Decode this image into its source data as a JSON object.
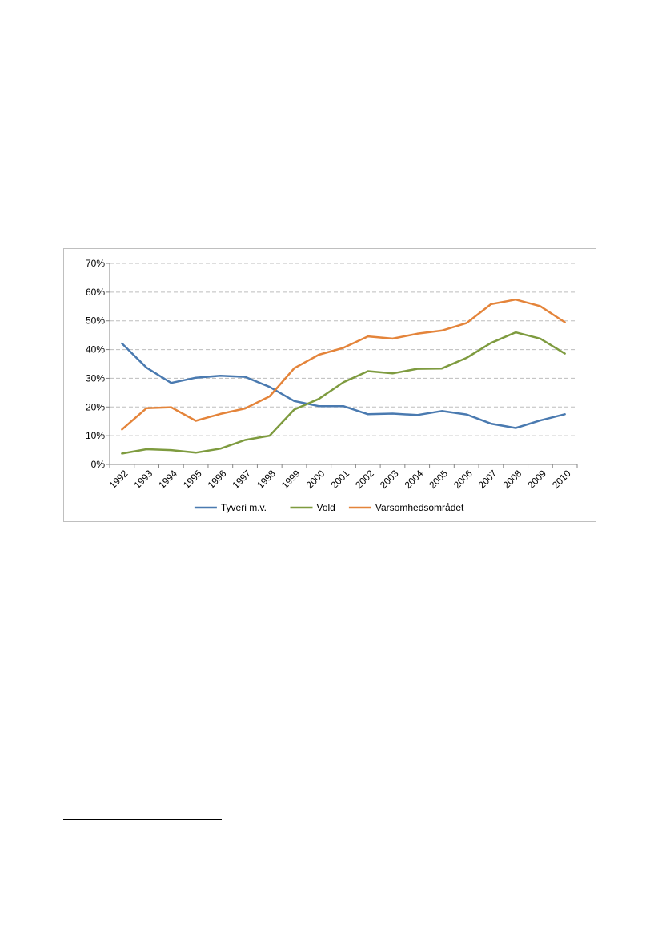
{
  "chart_data": {
    "type": "line",
    "title": "",
    "xlabel": "",
    "ylabel": "",
    "ylim": [
      0,
      70
    ],
    "yticks": [
      "0%",
      "10%",
      "20%",
      "30%",
      "40%",
      "50%",
      "60%",
      "70%"
    ],
    "ytick_values": [
      0,
      10,
      20,
      30,
      40,
      50,
      60,
      70
    ],
    "categories": [
      "1992",
      "1993",
      "1994",
      "1995",
      "1996",
      "1997",
      "1998",
      "1999",
      "2000",
      "2001",
      "2002",
      "2003",
      "2004",
      "2005",
      "2006",
      "2007",
      "2008",
      "2009",
      "2010"
    ],
    "grid": true,
    "legend_position": "bottom",
    "series": [
      {
        "name": "Tyveri m.v.",
        "color": "#4a7ab0",
        "values": [
          42.1,
          33.7,
          28.4,
          30.2,
          30.9,
          30.5,
          27.0,
          22.1,
          20.3,
          20.3,
          17.5,
          17.7,
          17.2,
          18.6,
          17.4,
          14.2,
          12.7,
          15.3,
          17.5
        ]
      },
      {
        "name": "Vold",
        "color": "#7e9b3f",
        "values": [
          3.8,
          5.3,
          5.0,
          4.1,
          5.5,
          8.5,
          10.0,
          19.1,
          22.8,
          28.6,
          32.5,
          31.7,
          33.3,
          33.4,
          37.1,
          42.3,
          46.0,
          43.8,
          38.6
        ]
      },
      {
        "name": "Varsomhedsområdet",
        "color": "#e4843a",
        "values": [
          12.2,
          19.6,
          19.9,
          15.2,
          17.6,
          19.5,
          23.7,
          33.5,
          38.2,
          40.6,
          44.6,
          43.8,
          45.5,
          46.6,
          49.2,
          55.8,
          57.4,
          55.1,
          49.5
        ]
      }
    ]
  }
}
